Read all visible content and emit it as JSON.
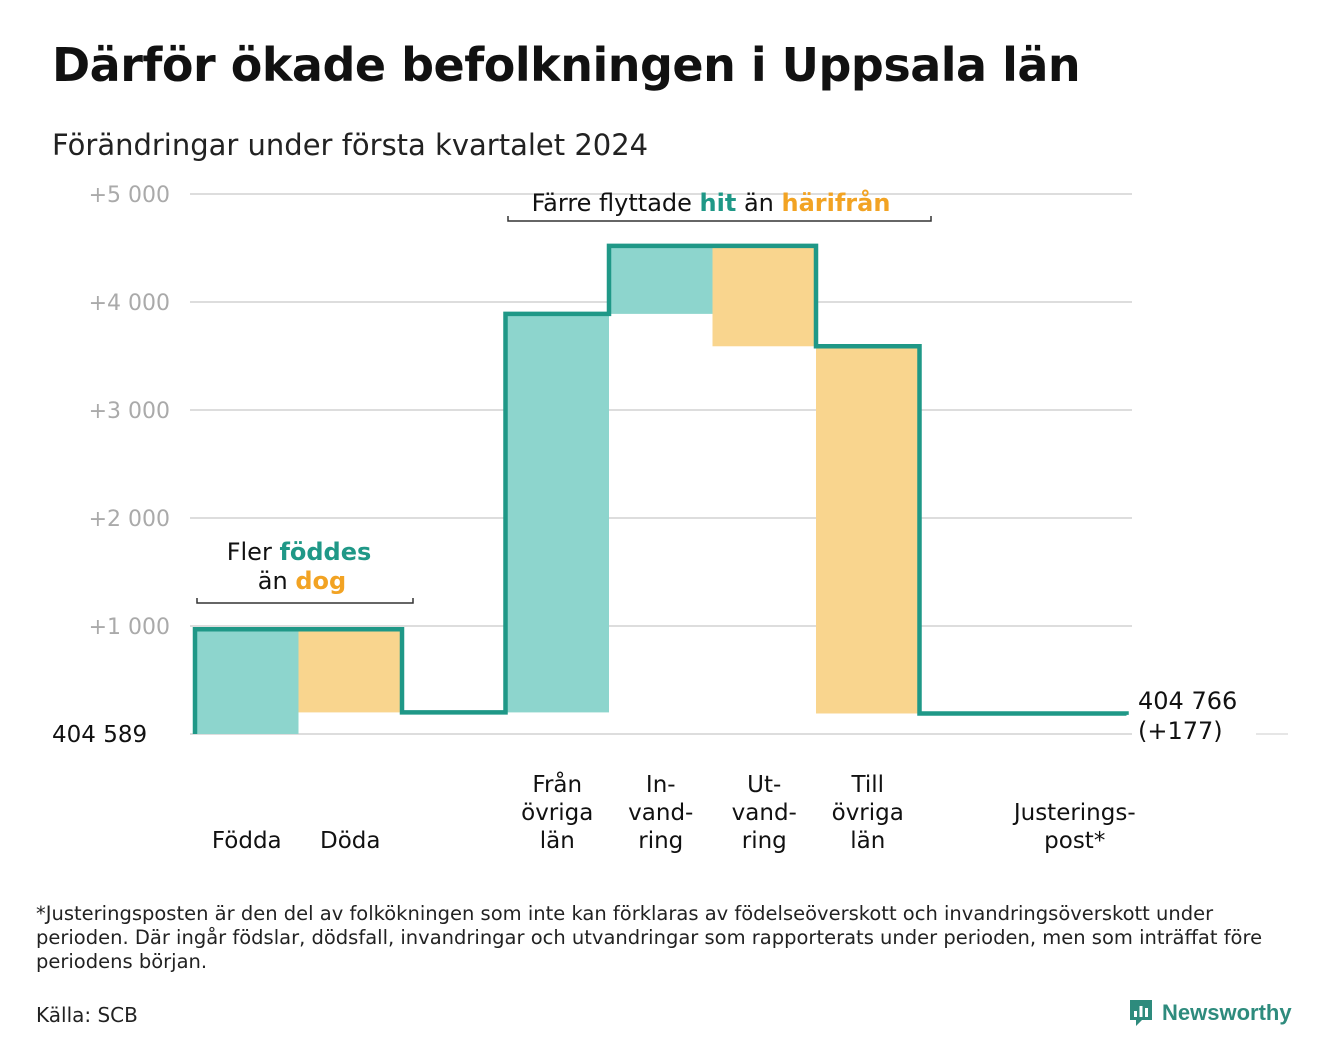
{
  "title": "Därför ökade befolkningen i Uppsala län",
  "subtitle": "Förändringar under första kvartalet 2024",
  "chart_data": {
    "type": "waterfall",
    "base_value": 404589,
    "base_label": "404 589",
    "end_value": 404766,
    "end_label_line1": "404 766",
    "end_label_line2": "(+177)",
    "y_ticks": [
      {
        "value": 1000,
        "label": "+1 000"
      },
      {
        "value": 2000,
        "label": "+2 000"
      },
      {
        "value": 3000,
        "label": "+3 000"
      },
      {
        "value": 4000,
        "label": "+4 000"
      },
      {
        "value": 5000,
        "label": "+5 000"
      }
    ],
    "ylim": [
      0,
      5000
    ],
    "grid": true,
    "steps": [
      {
        "key": "fodda",
        "label": [
          "Födda"
        ],
        "delta": 970,
        "kind": "increase"
      },
      {
        "key": "doda",
        "label": [
          "Döda"
        ],
        "delta": -770,
        "kind": "decrease"
      },
      {
        "key": "gap",
        "label": [],
        "delta": 0,
        "kind": "spacer"
      },
      {
        "key": "fran_ovriga",
        "label": [
          "Från",
          "övriga",
          "län"
        ],
        "delta": 3690,
        "kind": "increase"
      },
      {
        "key": "invandring",
        "label": [
          "In-",
          "vand-",
          "ring"
        ],
        "delta": 630,
        "kind": "increase"
      },
      {
        "key": "utvandring",
        "label": [
          "Ut-",
          "vand-",
          "ring"
        ],
        "delta": -930,
        "kind": "decrease"
      },
      {
        "key": "till_ovriga",
        "label": [
          "Till",
          "övriga",
          "län"
        ],
        "delta": -3400,
        "kind": "decrease"
      },
      {
        "key": "gap2",
        "label": [],
        "delta": 0,
        "kind": "spacer"
      },
      {
        "key": "justering",
        "label": [
          "Justerings-",
          "post*"
        ],
        "delta": -13,
        "kind": "decrease"
      }
    ],
    "annotations": [
      {
        "key": "birth",
        "parts": [
          {
            "text": "Fler ",
            "color": "text"
          },
          {
            "text": "föddes",
            "color": "increase"
          }
        ],
        "parts2": [
          {
            "text": "än ",
            "color": "text"
          },
          {
            "text": "dog",
            "color": "decrease"
          }
        ]
      },
      {
        "key": "migration",
        "parts": [
          {
            "text": "Färre flyttade ",
            "color": "text"
          },
          {
            "text": "hit",
            "color": "increase"
          },
          {
            "text": " än ",
            "color": "text"
          },
          {
            "text": "härifrån",
            "color": "decrease"
          }
        ]
      }
    ],
    "colors": {
      "increase": "#8dd5cd",
      "decrease": "#f9d58e",
      "line": "#1f9887",
      "increase_text": "#1f9887",
      "decrease_text": "#f2a323",
      "grid": "#dddddd",
      "tick_text": "#aaaaaa",
      "text": "#111111"
    }
  },
  "footnote": "*Justeringsposten är den del av folkökningen som inte kan förklaras av födelseöverskott och invandringsöverskott under perioden. Där ingår födslar, dödsfall, invandringar och utvandringar som rapporterats under perioden, men som inträffat före periodens början.",
  "source": "Källa: SCB",
  "brand": {
    "name": "Newsworthy",
    "icon": "newsworthy-logo-icon"
  }
}
